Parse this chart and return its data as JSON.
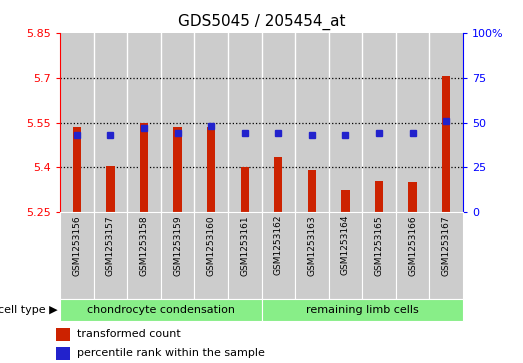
{
  "title": "GDS5045 / 205454_at",
  "samples": [
    "GSM1253156",
    "GSM1253157",
    "GSM1253158",
    "GSM1253159",
    "GSM1253160",
    "GSM1253161",
    "GSM1253162",
    "GSM1253163",
    "GSM1253164",
    "GSM1253165",
    "GSM1253166",
    "GSM1253167"
  ],
  "bar_values": [
    5.535,
    5.405,
    5.548,
    5.535,
    5.535,
    5.402,
    5.435,
    5.393,
    5.325,
    5.355,
    5.35,
    5.705
  ],
  "percentile_values": [
    43,
    43,
    47,
    44,
    48,
    44,
    44,
    43,
    43,
    44,
    44,
    51
  ],
  "bar_base": 5.25,
  "ylim_left": [
    5.25,
    5.85
  ],
  "ylim_right": [
    0,
    100
  ],
  "yticks_left": [
    5.25,
    5.4,
    5.55,
    5.7,
    5.85
  ],
  "yticks_right": [
    0,
    25,
    50,
    75,
    100
  ],
  "ytick_labels_right": [
    "0",
    "25",
    "50",
    "75",
    "100%"
  ],
  "hlines": [
    5.4,
    5.55,
    5.7
  ],
  "bar_color": "#CC2200",
  "percentile_color": "#2222CC",
  "group1_label": "chondrocyte condensation",
  "group2_label": "remaining limb cells",
  "group1_count": 6,
  "group2_count": 6,
  "cell_type_label": "cell type",
  "legend1": "transformed count",
  "legend2": "percentile rank within the sample",
  "group_bg_color": "#88EE88",
  "sample_bg_color": "#CCCCCC",
  "title_fontsize": 11,
  "tick_fontsize": 8,
  "legend_fontsize": 8,
  "group_fontsize": 8,
  "sample_fontsize": 6.5
}
